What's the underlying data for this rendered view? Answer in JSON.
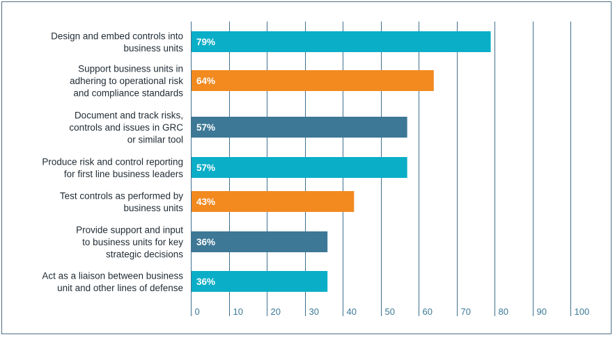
{
  "chart_data": {
    "type": "bar",
    "orientation": "horizontal",
    "categories": [
      [
        "Design and embed controls into",
        "business units"
      ],
      [
        "Support business units in",
        "adhering to operational risk",
        "and compliance standards"
      ],
      [
        "Document and track risks,",
        "controls and issues in GRC",
        "or similar tool"
      ],
      [
        "Produce risk and control reporting",
        "for first line business leaders"
      ],
      [
        "Test controls as performed by",
        "business units"
      ],
      [
        "Provide support and input",
        "to business units for key",
        "strategic decisions"
      ],
      [
        "Act as a liaison between business",
        "unit and other lines of defense"
      ]
    ],
    "values": [
      79,
      64,
      57,
      57,
      43,
      36,
      36
    ],
    "value_labels": [
      "79%",
      "64%",
      "57%",
      "57%",
      "43%",
      "36%",
      "36%"
    ],
    "bar_colors": [
      "#0aaec7",
      "#f28a20",
      "#3d7896",
      "#0aaec7",
      "#f28a20",
      "#3d7896",
      "#0aaec7"
    ],
    "xlim": [
      0,
      100
    ],
    "xticks": [
      0,
      10,
      20,
      30,
      40,
      50,
      60,
      70,
      80,
      90,
      100
    ],
    "grid": true,
    "gridline_color": "#3d6f8c",
    "title": "",
    "xlabel": "",
    "ylabel": ""
  }
}
